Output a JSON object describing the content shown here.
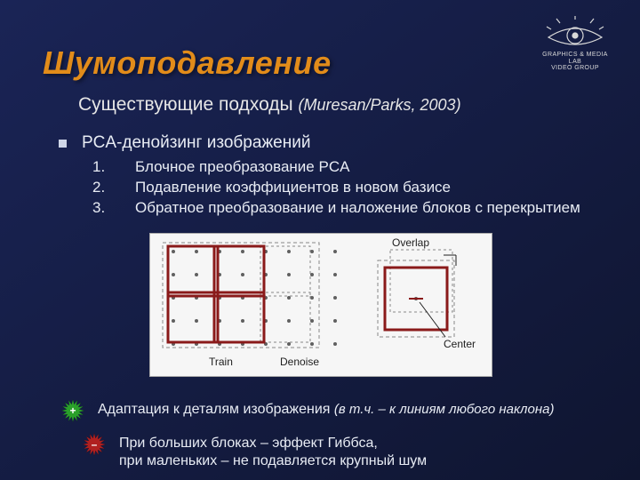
{
  "logo": {
    "line1": "GRAPHICS & MEDIA LAB",
    "line2": "VIDEO GROUP",
    "stroke": "#d8d8d8"
  },
  "title": "Шумоподавление",
  "subtitle": {
    "text": "Существующие подходы ",
    "cite": "(Muresan/Parks, 2003)"
  },
  "bullet": "PCA-денойзинг изображений",
  "steps": [
    "Блочное преобразование PCA",
    "Подавление коэффициентов в новом базисе",
    "Обратное преобразование и наложение блоков с перекрытием"
  ],
  "pros": {
    "badge": "+",
    "badge_color": "#2aa02a",
    "text": "Адаптация к деталям изображения ",
    "paren": "(в т.ч. – к линиям любого наклона)"
  },
  "cons": {
    "badge": "–",
    "badge_color": "#b02020",
    "line1": "При больших блоках – эффект Гиббса,",
    "line2": "при маленьких – не подавляется крупный шум"
  },
  "diagram": {
    "bg": "#f6f6f6",
    "dot_color": "#606060",
    "thin_stroke": "#888888",
    "thick_stroke": "#8a1a1a",
    "text_color": "#202020",
    "labels": {
      "train": "Train",
      "denoise": "Denoise",
      "overlap": "Overlap",
      "center": "Center"
    },
    "dot_r": 2
  }
}
